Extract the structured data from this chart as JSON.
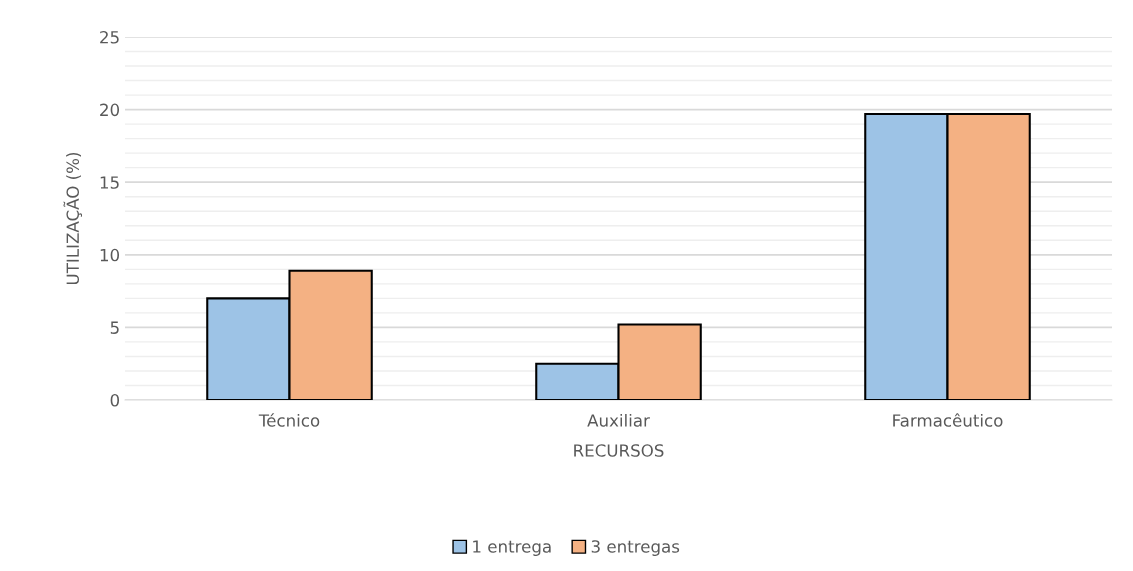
{
  "chart_data": {
    "type": "bar",
    "xlabel": "RECURSOS",
    "ylabel": "UTILIZAÇÃO (%)",
    "categories": [
      "Técnico",
      "Auxiliar",
      "Farmacêutico"
    ],
    "series": [
      {
        "name": "1 entrega",
        "color": "#9dc3e6",
        "values": [
          7.0,
          2.5,
          19.7
        ]
      },
      {
        "name": "3 entregas",
        "color": "#f4b183",
        "values": [
          8.9,
          5.2,
          19.7
        ]
      }
    ],
    "ylim": [
      0,
      25
    ],
    "yticks": [
      0,
      {
        "value": 1,
        "label": null
      },
      {
        "value": 2,
        "label": null
      },
      {
        "value": 3,
        "label": null
      },
      {
        "value": 4,
        "label": null
      },
      5,
      {
        "value": 6,
        "label": null
      },
      {
        "value": 7,
        "label": null
      },
      {
        "value": 8,
        "label": null
      },
      {
        "value": 9,
        "label": null
      },
      10,
      {
        "value": 11,
        "label": null
      },
      {
        "value": 12,
        "label": null
      },
      {
        "value": 13,
        "label": null
      },
      {
        "value": 14,
        "label": null
      },
      15,
      {
        "value": 16,
        "label": null
      },
      {
        "value": 17,
        "label": null
      },
      {
        "value": 18,
        "label": null
      },
      {
        "value": 19,
        "label": null
      },
      20,
      {
        "value": 21,
        "label": null
      },
      {
        "value": 22,
        "label": null
      },
      {
        "value": 23,
        "label": null
      },
      {
        "value": 24,
        "label": null
      },
      25
    ],
    "grid": "y",
    "legend": "bottom"
  }
}
